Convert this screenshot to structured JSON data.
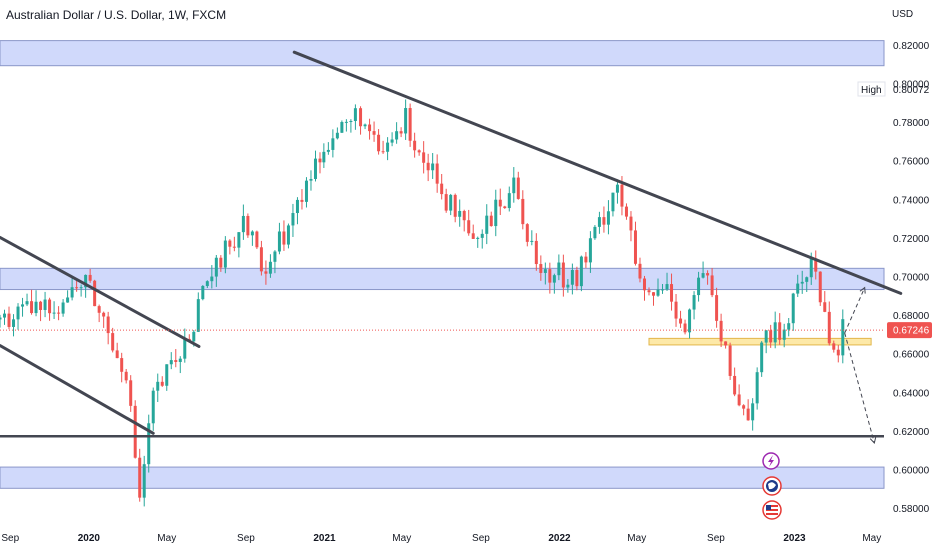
{
  "chart_title": "Australian Dollar / U.S. Dollar, 1W, FXCM",
  "currency": "USD",
  "colors": {
    "up": "#26a69a",
    "down": "#ef5350",
    "zone_fill": "#d0d9fb",
    "zone_border": "#8a96c8",
    "support_fill": "#fde9a8",
    "support_border": "#e2b64b",
    "trendline": "#434651",
    "price_badge": "#ef5350",
    "price_line": "#ef5350",
    "event_icon_purple": "#9c27b0",
    "event_icon_red": "#e53935"
  },
  "high_label": {
    "label": "High",
    "value": "0.80072"
  },
  "last_price": "0.67246",
  "event_icons": [
    "lightning-icon",
    "earnings-icon",
    "us-flag-icon"
  ],
  "chart_data": {
    "type": "candlestick",
    "title": "Australian Dollar / U.S. Dollar, 1W, FXCM",
    "xlabel": "",
    "ylabel": "USD",
    "ylim": [
      0.572,
      0.828
    ],
    "xlim": [
      "2019-08-16",
      "2023-05-20"
    ],
    "y_ticks": [
      "0.82000",
      "0.80000",
      "0.78000",
      "0.76000",
      "0.74000",
      "0.72000",
      "0.70000",
      "0.68000",
      "0.66000",
      "0.64000",
      "0.62000",
      "0.60000",
      "0.58000"
    ],
    "x_ticks": [
      {
        "label": "Sep",
        "date": "2019-09-01",
        "bold": false
      },
      {
        "label": "2020",
        "date": "2020-01-01",
        "bold": true
      },
      {
        "label": "May",
        "date": "2020-05-01",
        "bold": false
      },
      {
        "label": "Sep",
        "date": "2020-09-01",
        "bold": false
      },
      {
        "label": "2021",
        "date": "2021-01-01",
        "bold": true
      },
      {
        "label": "May",
        "date": "2021-05-01",
        "bold": false
      },
      {
        "label": "Sep",
        "date": "2021-09-01",
        "bold": false
      },
      {
        "label": "2022",
        "date": "2022-01-01",
        "bold": true
      },
      {
        "label": "May",
        "date": "2022-05-01",
        "bold": false
      },
      {
        "label": "Sep",
        "date": "2022-09-01",
        "bold": false
      },
      {
        "label": "2023",
        "date": "2023-01-01",
        "bold": true
      },
      {
        "label": "May",
        "date": "2023-05-01",
        "bold": false
      }
    ],
    "zones": [
      {
        "y_top": 0.8225,
        "y_bottom": 0.8095
      },
      {
        "y_top": 0.7045,
        "y_bottom": 0.6935
      },
      {
        "y_top": 0.6015,
        "y_bottom": 0.5905
      }
    ],
    "support_zone": {
      "x_start": "2022-05-20",
      "x_end": "2023-04-30",
      "y_top": 0.6682,
      "y_bottom": 0.6648
    },
    "trendlines": [
      {
        "x1": "2020-11-15",
        "y1": 0.8165,
        "x2": "2023-06-15",
        "y2": 0.6915
      },
      {
        "x1": "2019-08-16",
        "y1": 0.7205,
        "x2": "2020-06-20",
        "y2": 0.664
      },
      {
        "x1": "2019-08-16",
        "y1": 0.6645,
        "x2": "2020-04-10",
        "y2": 0.619
      }
    ],
    "horizontal_lines": [
      {
        "y": 0.6175
      }
    ],
    "projections": [
      {
        "x1": "2023-03-20",
        "y1": 0.671,
        "x2": "2023-04-20",
        "y2": 0.6945
      },
      {
        "x1": "2023-03-20",
        "y1": 0.671,
        "x2": "2023-05-05",
        "y2": 0.614
      }
    ],
    "anchors": [
      {
        "date": "2019-08-16",
        "close": 0.678
      },
      {
        "date": "2019-09-20",
        "close": 0.681
      },
      {
        "date": "2019-11-15",
        "close": 0.687
      },
      {
        "date": "2019-12-27",
        "close": 0.699
      },
      {
        "date": "2020-01-31",
        "close": 0.672
      },
      {
        "date": "2020-02-28",
        "close": 0.652
      },
      {
        "date": "2020-03-20",
        "close": 0.585
      },
      {
        "date": "2020-04-10",
        "close": 0.638
      },
      {
        "date": "2020-05-29",
        "close": 0.665
      },
      {
        "date": "2020-07-03",
        "close": 0.695
      },
      {
        "date": "2020-08-28",
        "close": 0.73
      },
      {
        "date": "2020-09-25",
        "close": 0.705
      },
      {
        "date": "2020-11-06",
        "close": 0.726
      },
      {
        "date": "2020-12-31",
        "close": 0.77
      },
      {
        "date": "2021-02-26",
        "close": 0.785
      },
      {
        "date": "2021-03-26",
        "close": 0.762
      },
      {
        "date": "2021-05-07",
        "close": 0.782
      },
      {
        "date": "2021-06-18",
        "close": 0.752
      },
      {
        "date": "2021-08-20",
        "close": 0.715
      },
      {
        "date": "2021-10-22",
        "close": 0.748
      },
      {
        "date": "2021-12-03",
        "close": 0.702
      },
      {
        "date": "2022-01-28",
        "close": 0.7
      },
      {
        "date": "2022-04-01",
        "close": 0.75
      },
      {
        "date": "2022-05-13",
        "close": 0.688
      },
      {
        "date": "2022-06-17",
        "close": 0.695
      },
      {
        "date": "2022-07-15",
        "close": 0.675
      },
      {
        "date": "2022-08-12",
        "close": 0.705
      },
      {
        "date": "2022-09-30",
        "close": 0.64
      },
      {
        "date": "2022-10-21",
        "close": 0.63
      },
      {
        "date": "2022-11-18",
        "close": 0.67
      },
      {
        "date": "2022-12-16",
        "close": 0.672
      },
      {
        "date": "2023-01-27",
        "close": 0.71
      },
      {
        "date": "2023-02-24",
        "close": 0.672
      },
      {
        "date": "2023-03-10",
        "close": 0.662
      },
      {
        "date": "2023-03-17",
        "close": 0.6725
      }
    ]
  }
}
